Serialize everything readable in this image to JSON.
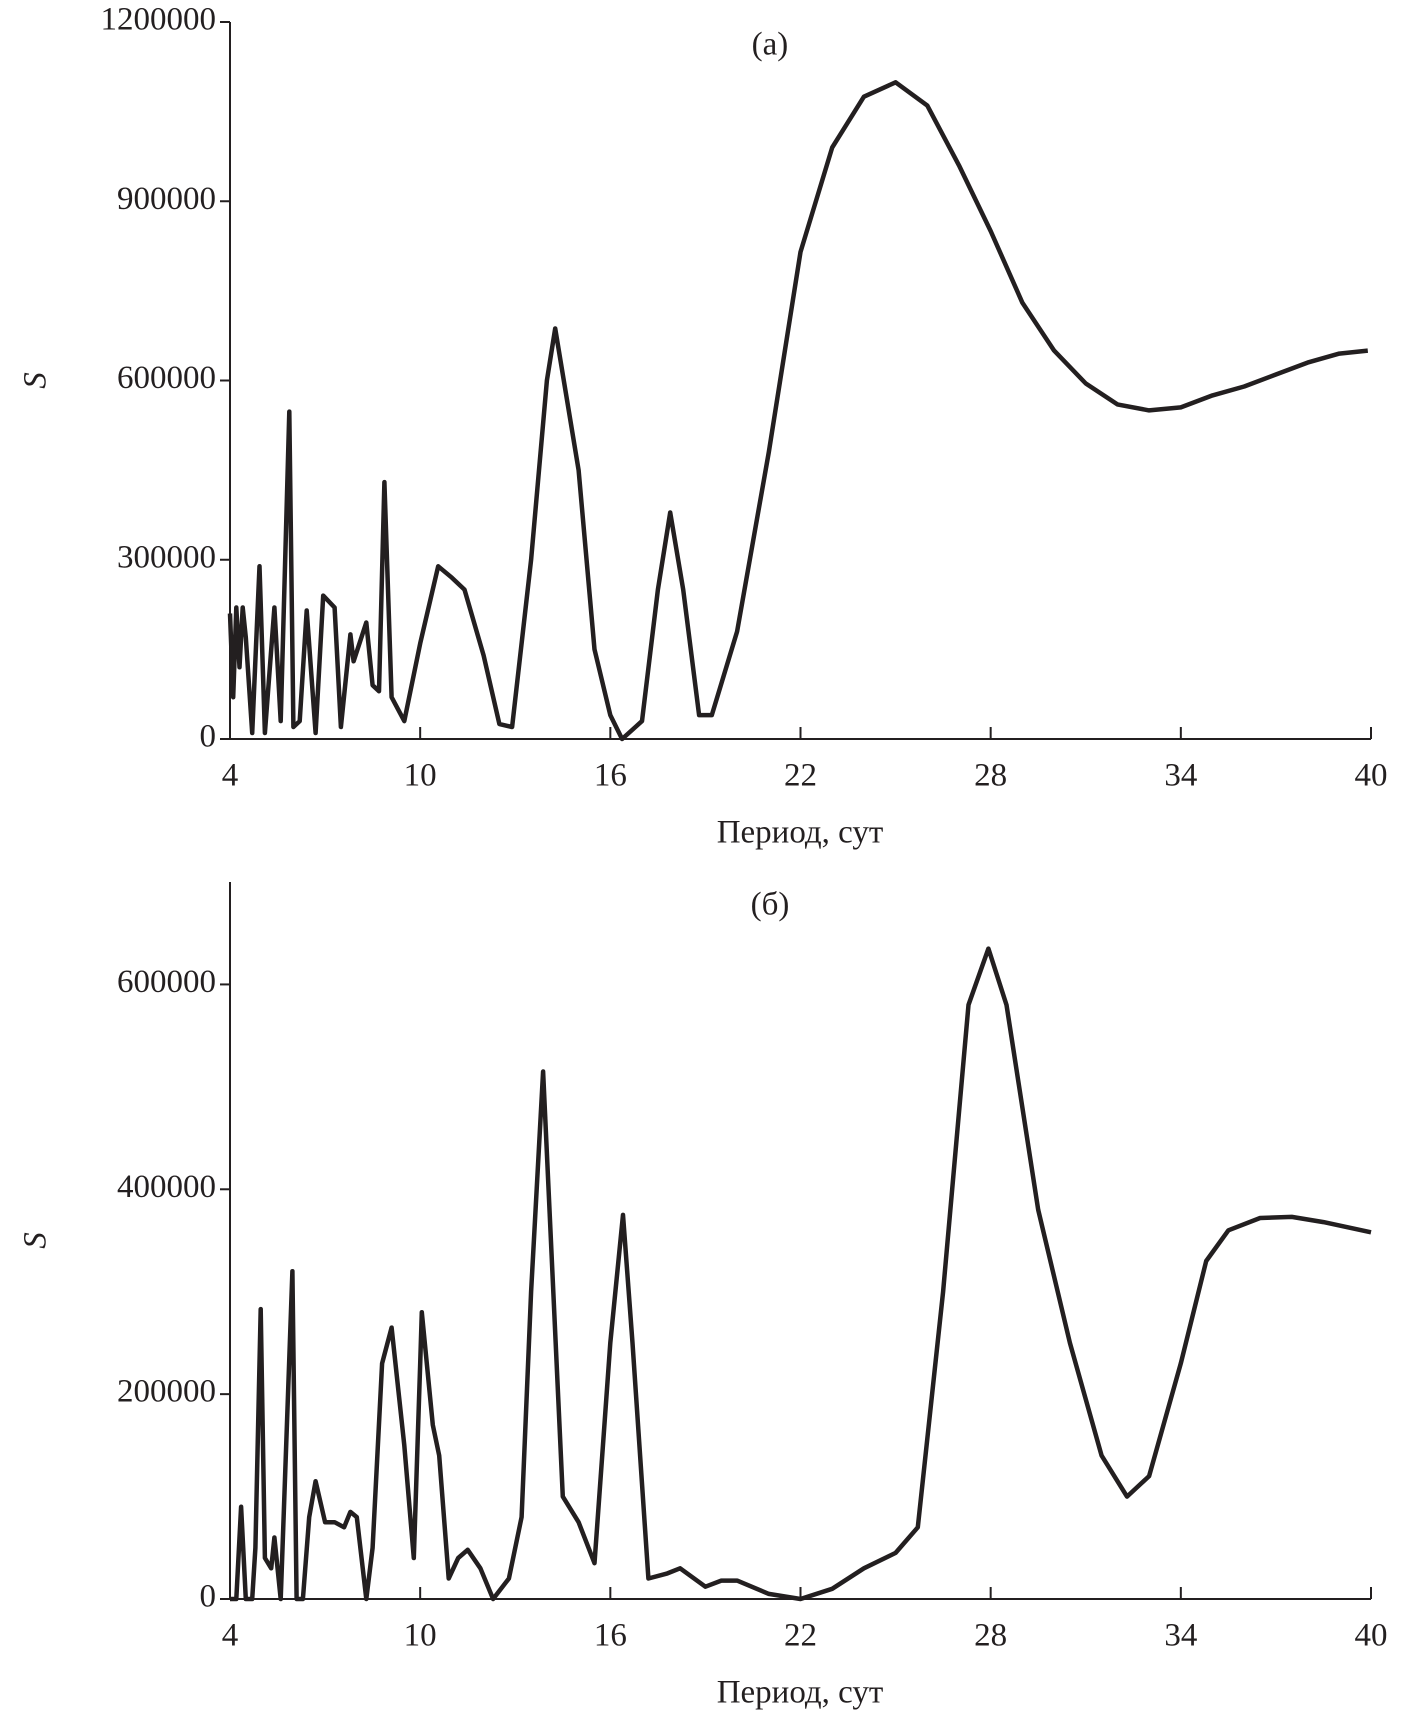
{
  "chart_data": [
    {
      "type": "line",
      "title": "(a)",
      "x_label": "Период, сут",
      "y_label": "S",
      "color": "#231f20",
      "xlim": [
        4,
        40
      ],
      "xticks": [
        4,
        10,
        16,
        22,
        28,
        34,
        40
      ],
      "ylim": [
        0,
        1200000
      ],
      "yticks": [
        0,
        300000,
        600000,
        900000,
        1200000
      ],
      "x": [
        4.0,
        4.1,
        4.2,
        4.3,
        4.4,
        4.5,
        4.7,
        4.93,
        5.1,
        5.4,
        5.6,
        5.87,
        6.0,
        6.2,
        6.42,
        6.7,
        6.94,
        7.3,
        7.5,
        7.8,
        7.9,
        8.3,
        8.5,
        8.7,
        8.87,
        9.1,
        9.5,
        10,
        10.57,
        11,
        11.4,
        12,
        12.5,
        12.9,
        13.5,
        14,
        14.26,
        15,
        15.5,
        16,
        16.37,
        17,
        17.5,
        17.89,
        18.3,
        18.8,
        19.2,
        20,
        21,
        22,
        23,
        24,
        25,
        26,
        27,
        28,
        29,
        30,
        31,
        32,
        33,
        34,
        35,
        36,
        37,
        38,
        39,
        39.9
      ],
      "values": [
        210000,
        70000,
        220000,
        120000,
        220000,
        170000,
        10000,
        289000,
        10000,
        220000,
        30000,
        548000,
        20000,
        30000,
        215000,
        10000,
        240000,
        220000,
        20000,
        175000,
        130000,
        195000,
        90000,
        80000,
        430000,
        70000,
        30000,
        160000,
        289000,
        270000,
        250000,
        140000,
        25000,
        20000,
        300000,
        600000,
        687000,
        450000,
        150000,
        40000,
        0,
        30000,
        250000,
        379000,
        250000,
        40000,
        40000,
        180000,
        480000,
        815000,
        990000,
        1075000,
        1099000,
        1060000,
        960000,
        850000,
        730000,
        650000,
        595000,
        560000,
        550000,
        555000,
        575000,
        590000,
        610000,
        630000,
        645000,
        650000
      ]
    },
    {
      "type": "line",
      "title": "(б)",
      "x_label": "Период, сут",
      "y_label": "S",
      "color": "#231f20",
      "xlim": [
        4,
        40
      ],
      "xticks": [
        4,
        10,
        16,
        22,
        28,
        34,
        40
      ],
      "ylim": [
        0,
        700000
      ],
      "yticks": [
        0,
        200000,
        400000,
        600000
      ],
      "x": [
        4,
        4.2,
        4.35,
        4.5,
        4.7,
        4.8,
        4.97,
        5.1,
        5.3,
        5.4,
        5.6,
        5.97,
        6.1,
        6.3,
        6.5,
        6.7,
        7.0,
        7.3,
        7.6,
        7.8,
        8.0,
        8.3,
        8.5,
        8.8,
        9.1,
        9.5,
        9.8,
        10.0,
        10.05,
        10.4,
        10.6,
        10.9,
        11.2,
        11.5,
        11.9,
        12.3,
        12.8,
        13.2,
        13.5,
        13.88,
        14.2,
        14.5,
        15,
        15.5,
        16,
        16.4,
        16.7,
        17.2,
        17.8,
        18.2,
        19,
        19.5,
        20,
        21,
        22,
        23,
        24,
        25,
        25.7,
        26.5,
        27.3,
        27.93,
        28.5,
        29.5,
        30.5,
        31.5,
        32.3,
        33,
        34,
        34.8,
        35.5,
        36.5,
        37.5,
        38.5,
        40
      ],
      "values": [
        0,
        0,
        90000,
        0,
        0,
        50000,
        283000,
        40000,
        30000,
        60000,
        0,
        320000,
        0,
        0,
        80000,
        115000,
        75000,
        75000,
        70000,
        85000,
        80000,
        0,
        50000,
        230000,
        265000,
        150000,
        40000,
        230000,
        280000,
        170000,
        140000,
        20000,
        40000,
        48000,
        30000,
        0,
        20000,
        80000,
        300000,
        515000,
        300000,
        100000,
        75000,
        35000,
        250000,
        375000,
        250000,
        20000,
        25000,
        30000,
        12000,
        18000,
        18000,
        5000,
        0,
        10000,
        30000,
        45000,
        70000,
        300000,
        580000,
        635000,
        580000,
        380000,
        250000,
        140000,
        100000,
        120000,
        230000,
        330000,
        360000,
        372000,
        373000,
        368000,
        358000
      ]
    }
  ]
}
